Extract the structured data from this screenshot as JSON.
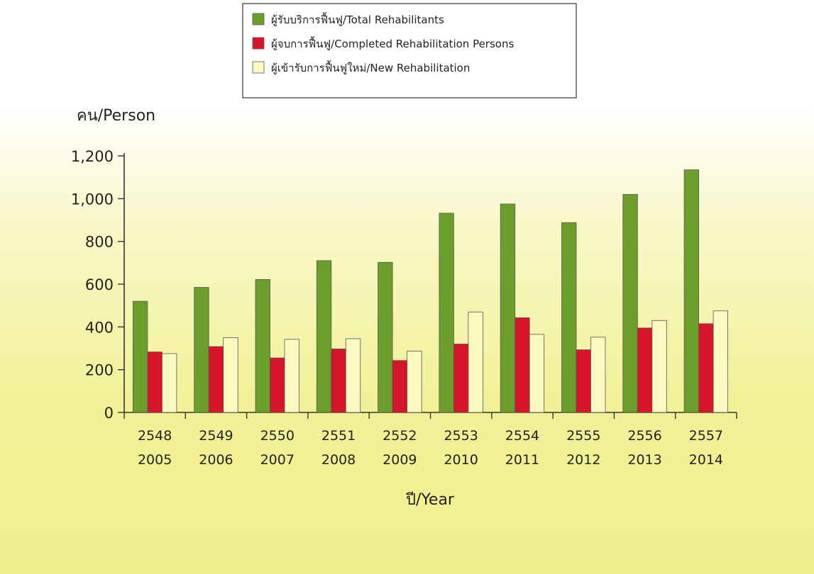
{
  "chart_data": {
    "type": "bar",
    "ylabel": "คน/Person",
    "xlabel": "ปี/Year",
    "ylim": [
      0,
      1200
    ],
    "yticks": [
      "0",
      "200",
      "400",
      "600",
      "800",
      "1,000",
      "1,200"
    ],
    "ytick_values": [
      0,
      200,
      400,
      600,
      800,
      1000,
      1200
    ],
    "categories": [
      "2548\n2005",
      "2549\n2006",
      "2550\n2007",
      "2551\n2008",
      "2552\n2009",
      "2553\n2010",
      "2554\n2011",
      "2555\n2012",
      "2556\n2013",
      "2557\n2014"
    ],
    "category_lines": [
      [
        "2548",
        "2005"
      ],
      [
        "2549",
        "2006"
      ],
      [
        "2550",
        "2007"
      ],
      [
        "2551",
        "2008"
      ],
      [
        "2552",
        "2009"
      ],
      [
        "2553",
        "2010"
      ],
      [
        "2554",
        "2011"
      ],
      [
        "2555",
        "2012"
      ],
      [
        "2556",
        "2013"
      ],
      [
        "2557",
        "2014"
      ]
    ],
    "series": [
      {
        "name": "ผู้รับบริการฟื้นฟู/Total Rehabilitants",
        "color": "#6b9e2a",
        "values": [
          520,
          585,
          622,
          710,
          702,
          932,
          975,
          888,
          1020,
          1135
        ]
      },
      {
        "name": "ผู้จบการฟื้นฟู/Completed Rehabilitation Persons",
        "color": "#d8142a",
        "values": [
          283,
          308,
          255,
          297,
          243,
          320,
          443,
          293,
          395,
          415
        ]
      },
      {
        "name": "ผู้เข้ารับการฟื้นฟูใหม่/New Rehabilitation",
        "color": "#fbf8c0",
        "values": [
          275,
          350,
          342,
          345,
          287,
          470,
          365,
          352,
          430,
          475
        ]
      }
    ],
    "legend_position": "top-center",
    "grid": false
  }
}
